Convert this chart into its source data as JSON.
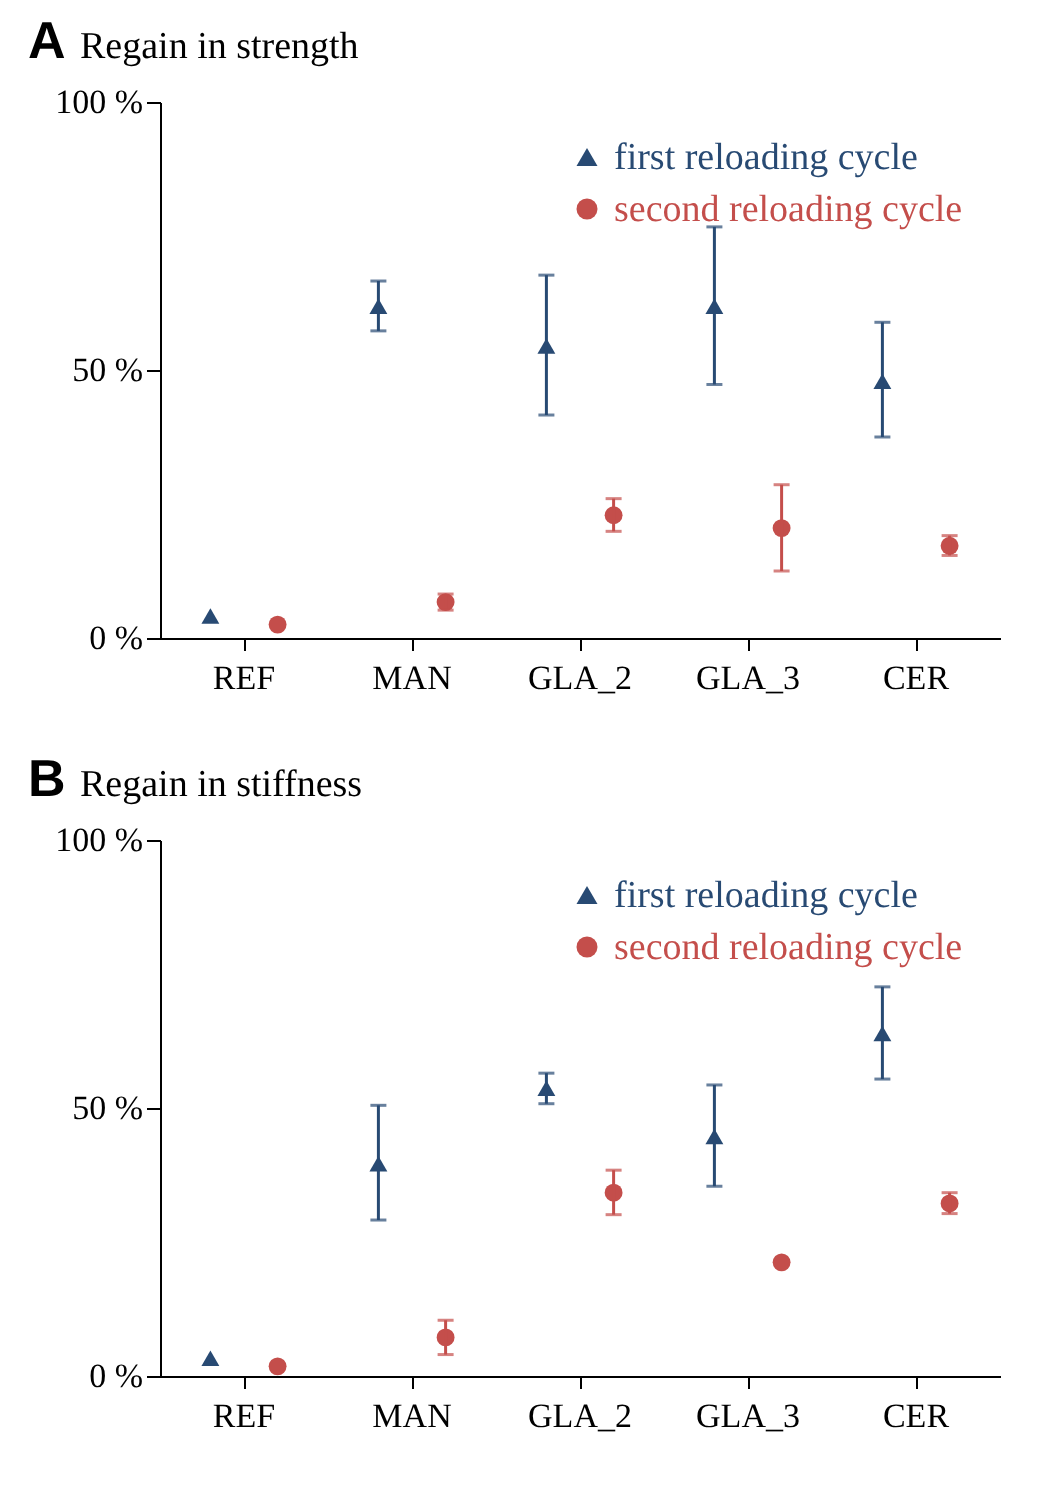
{
  "chart_data": [
    {
      "type": "scatter",
      "title": "Regain in strength",
      "annotations": [
        "A"
      ],
      "categories": [
        "REF",
        "MAN",
        "GLA_2",
        "GLA_3",
        "CER"
      ],
      "ylim": [
        0,
        100
      ],
      "yticks": [
        {
          "value": 0,
          "label": "0 %"
        },
        {
          "value": 50,
          "label": "50 %"
        },
        {
          "value": 100,
          "label": "100 %"
        }
      ],
      "grid": false,
      "legend": "top right",
      "series": [
        {
          "name": "first reloading cycle",
          "color": "#284a73",
          "marker": "triangle",
          "values": [
            4.1,
            61.9,
            54.5,
            61.9,
            47.9
          ],
          "errors": [
            null,
            [
              57.3,
              66.6
            ],
            [
              41.6,
              67.7
            ],
            [
              47.3,
              76.7
            ],
            [
              37.5,
              58.9
            ]
          ]
        },
        {
          "name": "second reloading cycle",
          "color": "#c44e4b",
          "marker": "circle",
          "values": [
            2.5,
            6.7,
            22.9,
            20.5,
            17.2
          ],
          "errors": [
            null,
            [
              5.2,
              8.2
            ],
            [
              19.9,
              26.0
            ],
            [
              12.5,
              28.6
            ],
            [
              15.4,
              19.1
            ]
          ]
        }
      ]
    },
    {
      "type": "scatter",
      "title": "Regain in stiffness",
      "annotations": [
        "B"
      ],
      "categories": [
        "REF",
        "MAN",
        "GLA_2",
        "GLA_3",
        "CER"
      ],
      "ylim": [
        0,
        100
      ],
      "yticks": [
        {
          "value": 0,
          "label": "0 %"
        },
        {
          "value": 50,
          "label": "50 %"
        },
        {
          "value": 100,
          "label": "100 %"
        }
      ],
      "grid": false,
      "legend": "top right",
      "series": [
        {
          "name": "first reloading cycle",
          "color": "#284a73",
          "marker": "triangle",
          "values": [
            3.3,
            39.6,
            53.7,
            44.7,
            63.9
          ],
          "errors": [
            null,
            [
              29.1,
              50.5
            ],
            [
              50.8,
              56.5
            ],
            [
              35.4,
              54.3
            ],
            [
              55.4,
              72.6
            ]
          ]
        },
        {
          "name": "second reloading cycle",
          "color": "#c44e4b",
          "marker": "circle",
          "values": [
            1.8,
            7.2,
            34.2,
            21.2,
            32.2
          ],
          "errors": [
            null,
            [
              4.0,
              10.4
            ],
            [
              30.1,
              38.4
            ],
            null,
            [
              30.3,
              34.2
            ]
          ]
        }
      ]
    }
  ]
}
